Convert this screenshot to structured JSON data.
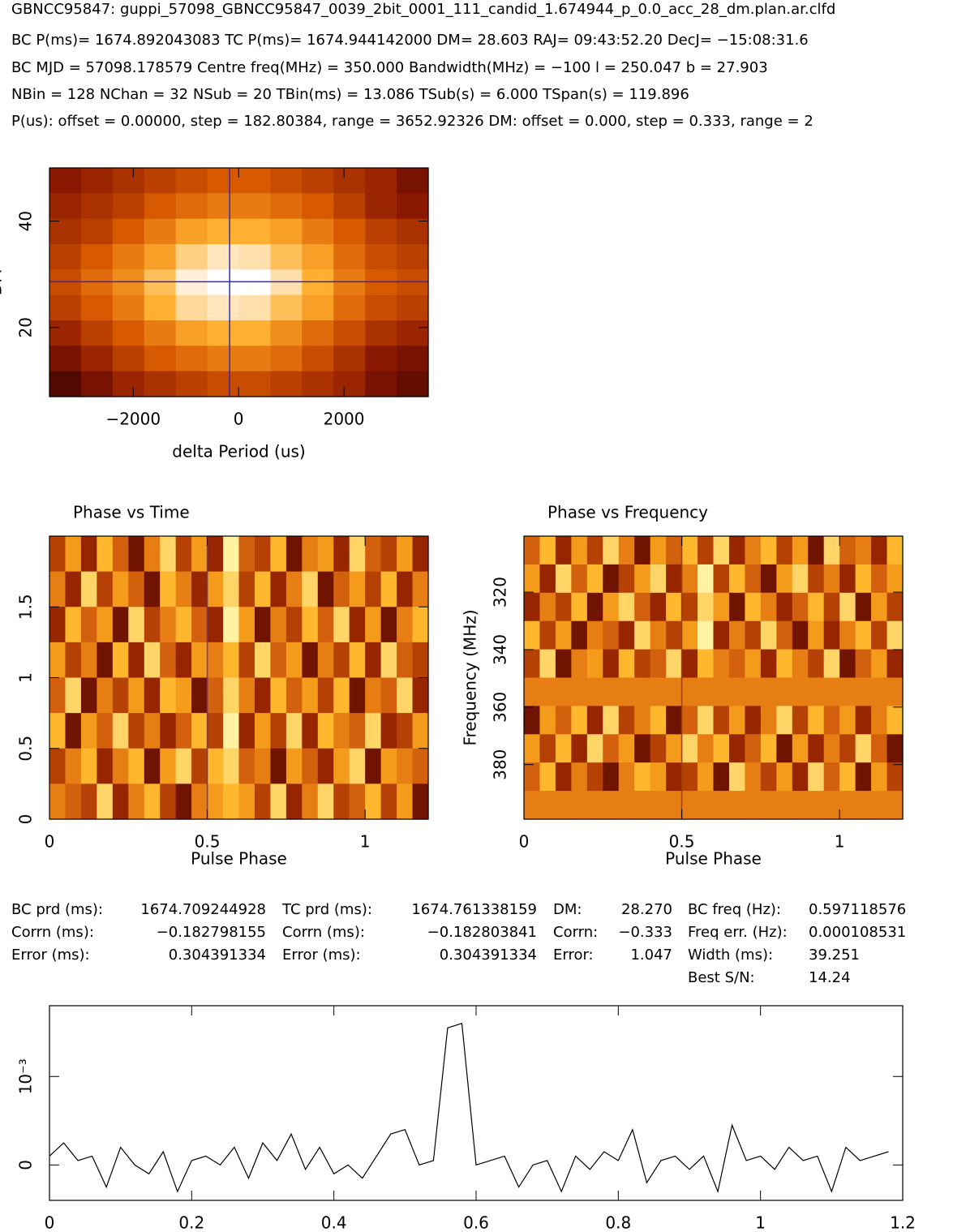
{
  "header_lines": [
    "GBNCC95847: guppi_57098_GBNCC95847_0039_2bit_0001_111_candid_1.674944_p_0.0_acc_28_dm.plan.ar.clfd",
    "BC P(ms)= 1674.892043083 TC P(ms)= 1674.944142000 DM= 28.603 RAJ= 09:43:52.20 DecJ= −15:08:31.6",
    "BC MJD = 57098.178579 Centre freq(MHz) = 350.000 Bandwidth(MHz) = −100 l = 250.047 b = 27.903",
    "NBin = 128 NChan = 32 NSub = 20 TBin(ms) = 13.086 TSub(s) = 6.000 TSpan(s) = 119.896",
    "P(us): offset = 0.00000, step = 182.80384, range = 3652.92326 DM: offset = 0.000, step = 0.333, range = 2"
  ],
  "stats": [
    {
      "rows": [
        [
          "BC prd (ms):",
          "1674.709244928"
        ],
        [
          "Corrn (ms):",
          "−0.182798155"
        ],
        [
          "Error (ms):",
          "0.304391334"
        ]
      ]
    },
    {
      "rows": [
        [
          "TC prd (ms):",
          "1674.761338159"
        ],
        [
          "Corrn (ms):",
          "−0.182803841"
        ],
        [
          "Error (ms):",
          "0.304391334"
        ]
      ]
    },
    {
      "rows": [
        [
          "DM:",
          "28.270"
        ],
        [
          "Corrn:",
          "−0.333"
        ],
        [
          "Error:",
          "1.047"
        ]
      ]
    },
    {
      "rows": [
        [
          "BC freq (Hz):",
          "0.597118576"
        ],
        [
          "Freq err. (Hz):",
          "0.000108531"
        ],
        [
          "Width (ms):",
          "39.251"
        ],
        [
          "Best S/N:",
          "14.24"
        ]
      ]
    }
  ],
  "chart_data": [
    {
      "type": "heatmap",
      "ylabel": "DM",
      "xlabel": "delta Period (us)",
      "xlim": [
        -3590,
        3600
      ],
      "xticks": [
        {
          "value": -2000,
          "label": "−2000"
        },
        0,
        2000
      ],
      "ylim": [
        7,
        50
      ],
      "yticks": [
        20,
        40
      ],
      "marker_x": -170,
      "marker_y": 28.603,
      "marker_color": "#2a2ad0",
      "zlim": [
        0,
        1
      ],
      "colormap": [
        "#2a0000",
        "#8a1800",
        "#d85a00",
        "#ffb030",
        "#ffffff"
      ],
      "z": [
        [
          0.25,
          0.3,
          0.35,
          0.4,
          0.45,
          0.5,
          0.5,
          0.45,
          0.4,
          0.35,
          0.3,
          0.2
        ],
        [
          0.3,
          0.35,
          0.4,
          0.5,
          0.55,
          0.6,
          0.6,
          0.55,
          0.5,
          0.4,
          0.3,
          0.25
        ],
        [
          0.35,
          0.4,
          0.5,
          0.6,
          0.7,
          0.75,
          0.75,
          0.7,
          0.6,
          0.5,
          0.4,
          0.35
        ],
        [
          0.4,
          0.5,
          0.6,
          0.7,
          0.85,
          0.92,
          0.9,
          0.8,
          0.7,
          0.55,
          0.45,
          0.4
        ],
        [
          0.45,
          0.55,
          0.65,
          0.8,
          0.95,
          1,
          1,
          0.9,
          0.75,
          0.6,
          0.5,
          0.45
        ],
        [
          0.4,
          0.5,
          0.6,
          0.75,
          0.88,
          0.92,
          0.9,
          0.8,
          0.7,
          0.55,
          0.45,
          0.4
        ],
        [
          0.3,
          0.4,
          0.5,
          0.6,
          0.7,
          0.75,
          0.75,
          0.65,
          0.55,
          0.45,
          0.35,
          0.3
        ],
        [
          0.2,
          0.3,
          0.4,
          0.5,
          0.55,
          0.6,
          0.6,
          0.55,
          0.45,
          0.35,
          0.25,
          0.2
        ],
        [
          0.1,
          0.2,
          0.3,
          0.35,
          0.4,
          0.45,
          0.45,
          0.4,
          0.35,
          0.3,
          0.2,
          0.15
        ]
      ]
    },
    {
      "type": "heatmap",
      "title": "Phase vs Time",
      "xlabel": "Pulse Phase",
      "xlim": [
        0,
        1.2
      ],
      "xticks": [
        0,
        0.5,
        1
      ],
      "ylim": [
        0,
        2
      ],
      "yticks": [
        0,
        0.5,
        1,
        1.5
      ],
      "marker_x": 0.5,
      "marker_color": "#5a3aa0",
      "zlim": [
        0,
        9
      ],
      "colormap": [
        "#4a0000",
        "#a02a00",
        "#e07010",
        "#ffb020",
        "#fff2a0"
      ],
      "z": [
        [
          3,
          6,
          2,
          7,
          4,
          1,
          5,
          8,
          3,
          6,
          2,
          9,
          4,
          3,
          7,
          1,
          5,
          6,
          2,
          8,
          4,
          3,
          6,
          2
        ],
        [
          5,
          2,
          8,
          3,
          6,
          4,
          1,
          7,
          5,
          2,
          6,
          8,
          3,
          7,
          2,
          5,
          8,
          1,
          4,
          6,
          3,
          7,
          2,
          5
        ],
        [
          2,
          7,
          4,
          6,
          1,
          8,
          3,
          5,
          7,
          4,
          2,
          9,
          6,
          1,
          5,
          3,
          7,
          4,
          8,
          2,
          6,
          1,
          5,
          7
        ],
        [
          6,
          3,
          5,
          1,
          7,
          2,
          8,
          4,
          2,
          6,
          5,
          7,
          3,
          8,
          4,
          6,
          1,
          5,
          3,
          7,
          2,
          8,
          4,
          3
        ],
        [
          4,
          8,
          1,
          5,
          3,
          6,
          2,
          7,
          6,
          1,
          4,
          8,
          5,
          2,
          7,
          4,
          6,
          3,
          7,
          1,
          5,
          4,
          8,
          2
        ],
        [
          7,
          1,
          6,
          4,
          8,
          3,
          5,
          2,
          4,
          7,
          3,
          9,
          2,
          6,
          3,
          8,
          2,
          7,
          5,
          4,
          8,
          2,
          3,
          6
        ],
        [
          3,
          5,
          7,
          2,
          5,
          7,
          1,
          6,
          8,
          3,
          7,
          8,
          4,
          5,
          1,
          6,
          4,
          2,
          6,
          8,
          1,
          6,
          5,
          4
        ],
        [
          5,
          4,
          3,
          8,
          2,
          5,
          7,
          3,
          1,
          5,
          6,
          7,
          6,
          3,
          8,
          2,
          5,
          8,
          3,
          4,
          7,
          3,
          6,
          1
        ]
      ]
    },
    {
      "type": "heatmap",
      "title": "Phase vs Frequency",
      "xlabel": "Pulse Phase",
      "ylabel": "Frequency (MHz)",
      "xlim": [
        0,
        1.2
      ],
      "xticks": [
        0,
        0.5,
        1
      ],
      "ylim": [
        399,
        300.5
      ],
      "yticks": [
        320,
        340,
        360,
        380
      ],
      "marker_x": 0.5,
      "marker_color": "#a04000",
      "zlim": [
        0,
        9
      ],
      "colormap": [
        "#4a0000",
        "#a02a00",
        "#e07010",
        "#ffb020",
        "#fff2a0"
      ],
      "z": [
        [
          4,
          7,
          2,
          6,
          3,
          8,
          5,
          1,
          6,
          4,
          7,
          3,
          8,
          2,
          5,
          7,
          3,
          6,
          1,
          8,
          4,
          5,
          2,
          7
        ],
        [
          6,
          2,
          8,
          4,
          7,
          1,
          3,
          6,
          8,
          2,
          5,
          9,
          3,
          7,
          4,
          1,
          6,
          8,
          3,
          5,
          2,
          7,
          4,
          6
        ],
        [
          2,
          5,
          3,
          7,
          1,
          6,
          8,
          4,
          2,
          7,
          3,
          8,
          6,
          1,
          7,
          5,
          2,
          4,
          7,
          3,
          8,
          1,
          6,
          3
        ],
        [
          7,
          3,
          6,
          1,
          5,
          4,
          2,
          8,
          5,
          3,
          6,
          9,
          2,
          5,
          3,
          8,
          4,
          1,
          6,
          2,
          5,
          7,
          3,
          8
        ],
        [
          3,
          8,
          1,
          5,
          6,
          2,
          7,
          3,
          4,
          8,
          2,
          7,
          5,
          4,
          6,
          2,
          7,
          5,
          3,
          8,
          1,
          4,
          6,
          2
        ],
        [
          5,
          5,
          5,
          5,
          5,
          5,
          5,
          5,
          5,
          5,
          5,
          5,
          5,
          5,
          5,
          5,
          5,
          5,
          5,
          5,
          5,
          5,
          5,
          5
        ],
        [
          1,
          6,
          4,
          7,
          2,
          8,
          3,
          5,
          7,
          1,
          4,
          8,
          3,
          6,
          2,
          5,
          8,
          3,
          7,
          4,
          6,
          2,
          5,
          7
        ],
        [
          6,
          3,
          7,
          2,
          8,
          4,
          6,
          1,
          3,
          6,
          8,
          5,
          7,
          2,
          4,
          7,
          1,
          6,
          2,
          5,
          3,
          8,
          4,
          1
        ],
        [
          4,
          7,
          2,
          5,
          3,
          1,
          5,
          7,
          6,
          2,
          3,
          6,
          1,
          8,
          5,
          3,
          6,
          2,
          8,
          4,
          7,
          1,
          6,
          3
        ],
        [
          5,
          5,
          5,
          5,
          5,
          5,
          5,
          5,
          5,
          5,
          5,
          5,
          5,
          5,
          5,
          5,
          5,
          5,
          5,
          5,
          5,
          5,
          5,
          5
        ]
      ]
    },
    {
      "type": "line",
      "color": "#000000",
      "xlim": [
        0,
        1.2
      ],
      "xticks": [
        0,
        0.2,
        0.4,
        0.6,
        0.8,
        1,
        1.2
      ],
      "ylim": [
        -0.0004,
        0.0018
      ],
      "yticks": [
        0,
        {
          "value": 0.001,
          "label": "10⁻³"
        }
      ],
      "x": [
        0,
        0.02,
        0.04,
        0.06,
        0.08,
        0.1,
        0.12,
        0.14,
        0.16,
        0.18,
        0.2,
        0.22,
        0.24,
        0.26,
        0.28,
        0.3,
        0.32,
        0.34,
        0.36,
        0.38,
        0.4,
        0.42,
        0.44,
        0.46,
        0.48,
        0.5,
        0.52,
        0.54,
        0.56,
        0.58,
        0.6,
        0.62,
        0.64,
        0.66,
        0.68,
        0.7,
        0.72,
        0.74,
        0.76,
        0.78,
        0.8,
        0.82,
        0.84,
        0.86,
        0.88,
        0.9,
        0.92,
        0.94,
        0.96,
        0.98,
        1,
        1.02,
        1.04,
        1.06,
        1.08,
        1.1,
        1.12,
        1.14,
        1.16,
        1.18
      ],
      "values": [
        0.0001,
        0.00025,
        5e-05,
        0.0001,
        -0.00025,
        0.0002,
        0,
        -0.0001,
        0.00015,
        -0.0003,
        5e-05,
        0.0001,
        0,
        0.0002,
        -0.00015,
        0.00025,
        5e-05,
        0.00035,
        -5e-05,
        0.0002,
        -0.0001,
        0,
        -0.00015,
        0.0001,
        0.00035,
        0.0004,
        0,
        5e-05,
        0.00155,
        0.0016,
        0,
        5e-05,
        0.0001,
        -0.00025,
        0,
        5e-05,
        -0.0003,
        0.0001,
        -5e-05,
        0.00015,
        5e-05,
        0.0004,
        -0.0002,
        5e-05,
        0.0001,
        -5e-05,
        0.0001,
        -0.0003,
        0.00045,
        5e-05,
        0.0001,
        -5e-05,
        0.0002,
        5e-05,
        0.0001,
        -0.0003,
        0.0002,
        5e-05,
        0.0001,
        0.00015
      ]
    }
  ]
}
